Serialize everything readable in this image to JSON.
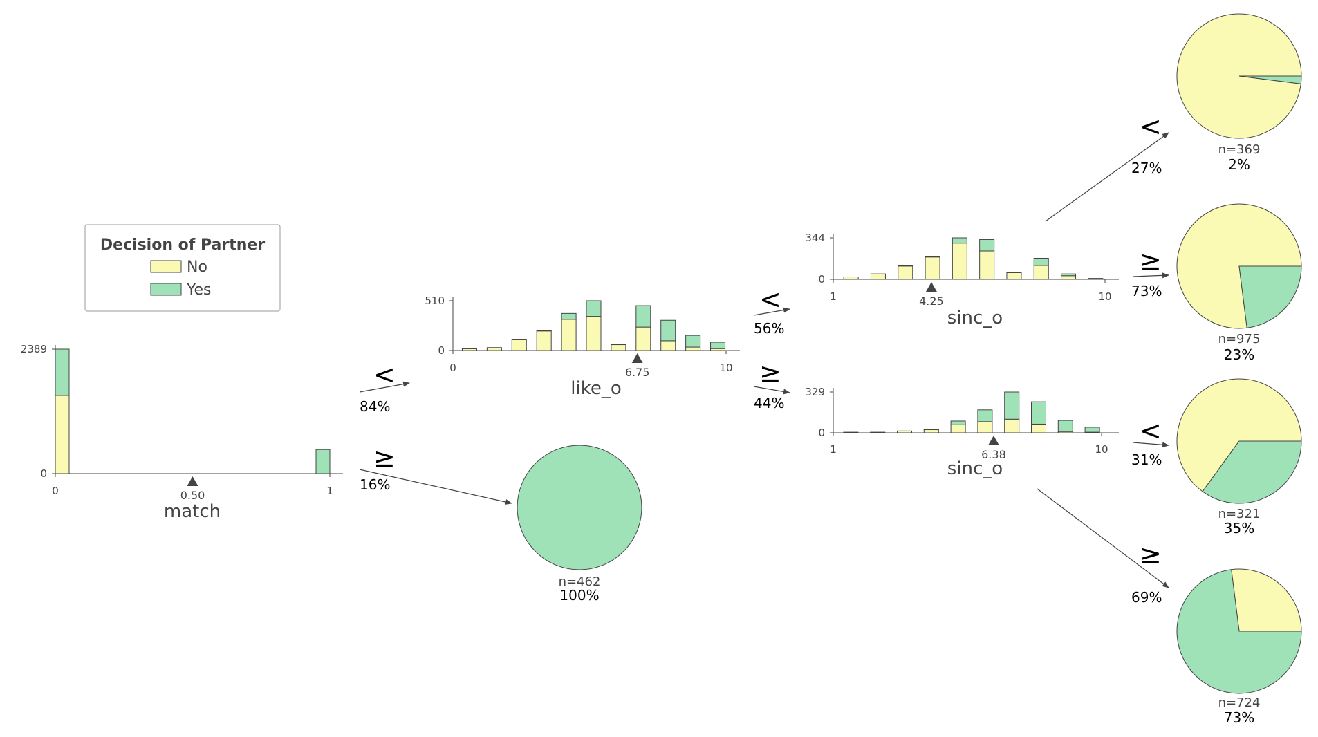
{
  "legend": {
    "title": "Decision of Partner",
    "items": [
      {
        "label": "No",
        "color": "#fafab4"
      },
      {
        "label": "Yes",
        "color": "#9fe2b7"
      }
    ]
  },
  "colors": {
    "no": "#fafab4",
    "yes": "#9fe2b7",
    "edge": "#444444"
  },
  "nodes": {
    "root": {
      "feature": "match",
      "split": "0.50",
      "ymax_label": "2389",
      "ymin_label": "0",
      "xmin_label": "0",
      "xmax_label": "1",
      "bins": [
        {
          "no": 1500,
          "yes": 889
        },
        {
          "no": 0,
          "yes": 462
        }
      ]
    },
    "like": {
      "feature": "like_o",
      "split": "6.75",
      "ymax_label": "510",
      "ymin_label": "0",
      "xmin_label": "0",
      "xmax_label": "10",
      "bins": [
        {
          "no": 18,
          "yes": 0
        },
        {
          "no": 30,
          "yes": 0
        },
        {
          "no": 110,
          "yes": 0
        },
        {
          "no": 200,
          "yes": 5
        },
        {
          "no": 320,
          "yes": 60
        },
        {
          "no": 350,
          "yes": 160
        },
        {
          "no": 60,
          "yes": 5
        },
        {
          "no": 240,
          "yes": 220
        },
        {
          "no": 100,
          "yes": 210
        },
        {
          "no": 35,
          "yes": 120
        },
        {
          "no": 20,
          "yes": 65
        }
      ]
    },
    "sinc_left": {
      "feature": "sinc_o",
      "split": "4.25",
      "ymax_label": "344",
      "ymin_label": "0",
      "xmin_label": "1",
      "xmax_label": "10",
      "bins": [
        {
          "no": 20,
          "yes": 0
        },
        {
          "no": 45,
          "yes": 0
        },
        {
          "no": 110,
          "yes": 5
        },
        {
          "no": 185,
          "yes": 5
        },
        {
          "no": 300,
          "yes": 44
        },
        {
          "no": 235,
          "yes": 95
        },
        {
          "no": 55,
          "yes": 5
        },
        {
          "no": 115,
          "yes": 60
        },
        {
          "no": 30,
          "yes": 15
        },
        {
          "no": 8,
          "yes": 0
        }
      ]
    },
    "sinc_right": {
      "feature": "sinc_o",
      "split": "6.38",
      "ymax_label": "329",
      "ymin_label": "0",
      "xmin_label": "1",
      "xmax_label": "10",
      "bins": [
        {
          "no": 5,
          "yes": 0
        },
        {
          "no": 5,
          "yes": 0
        },
        {
          "no": 15,
          "yes": 0
        },
        {
          "no": 25,
          "yes": 5
        },
        {
          "no": 65,
          "yes": 30
        },
        {
          "no": 90,
          "yes": 95
        },
        {
          "no": 110,
          "yes": 219
        },
        {
          "no": 70,
          "yes": 180
        },
        {
          "no": 10,
          "yes": 90
        },
        {
          "no": 5,
          "yes": 40
        }
      ]
    }
  },
  "edges": {
    "root_lt": {
      "symbol": "<",
      "pct": "84%"
    },
    "root_ge": {
      "symbol": "≥",
      "pct": "16%"
    },
    "like_lt": {
      "symbol": "<",
      "pct": "56%"
    },
    "like_ge": {
      "symbol": "≥",
      "pct": "44%"
    },
    "sl_lt": {
      "symbol": "<",
      "pct": "27%"
    },
    "sl_ge": {
      "symbol": "≥",
      "pct": "73%"
    },
    "sr_lt": {
      "symbol": "<",
      "pct": "31%"
    },
    "sr_ge": {
      "symbol": "≥",
      "pct": "69%"
    }
  },
  "leaves": {
    "root_ge": {
      "n": "n=462",
      "pct": "100%",
      "yes_fraction": 1.0
    },
    "leaf1": {
      "n": "n=369",
      "pct": "2%",
      "yes_fraction": 0.02
    },
    "leaf2": {
      "n": "n=975",
      "pct": "23%",
      "yes_fraction": 0.23
    },
    "leaf3": {
      "n": "n=321",
      "pct": "35%",
      "yes_fraction": 0.35
    },
    "leaf4": {
      "n": "n=724",
      "pct": "73%",
      "yes_fraction": 0.73
    }
  }
}
